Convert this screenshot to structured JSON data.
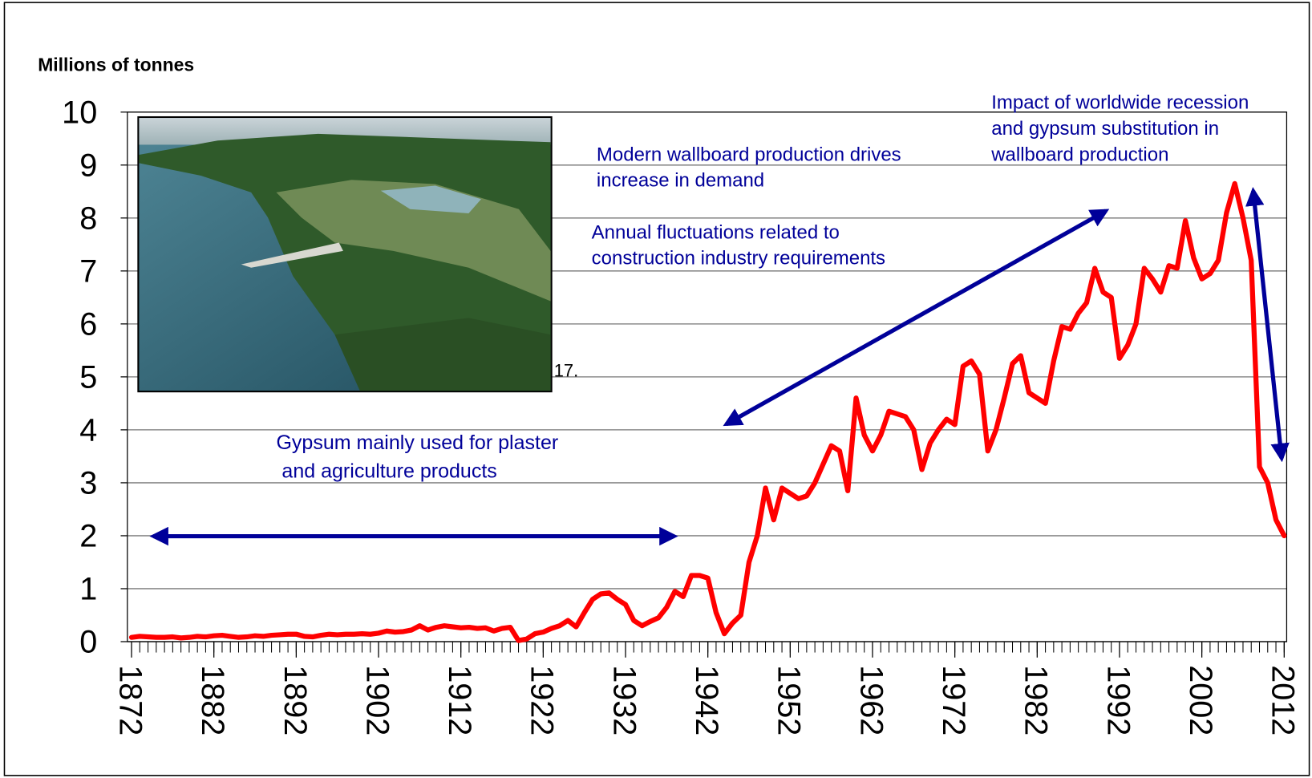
{
  "chart_data": {
    "type": "line",
    "y_axis_label": "Millions of tonnes",
    "x": [
      1872,
      1873,
      1874,
      1875,
      1876,
      1877,
      1878,
      1879,
      1880,
      1881,
      1882,
      1883,
      1884,
      1885,
      1886,
      1887,
      1888,
      1889,
      1890,
      1891,
      1892,
      1893,
      1894,
      1895,
      1896,
      1897,
      1898,
      1899,
      1900,
      1901,
      1902,
      1903,
      1904,
      1905,
      1906,
      1907,
      1908,
      1909,
      1910,
      1911,
      1912,
      1913,
      1914,
      1915,
      1916,
      1917,
      1918,
      1919,
      1920,
      1921,
      1922,
      1923,
      1924,
      1925,
      1926,
      1927,
      1928,
      1929,
      1930,
      1931,
      1932,
      1933,
      1934,
      1935,
      1936,
      1937,
      1938,
      1939,
      1940,
      1941,
      1942,
      1943,
      1944,
      1945,
      1946,
      1947,
      1948,
      1949,
      1950,
      1951,
      1952,
      1953,
      1954,
      1955,
      1956,
      1957,
      1958,
      1959,
      1960,
      1961,
      1962,
      1963,
      1964,
      1965,
      1966,
      1967,
      1968,
      1969,
      1970,
      1971,
      1972,
      1973,
      1974,
      1975,
      1976,
      1977,
      1978,
      1979,
      1980,
      1981,
      1982,
      1983,
      1984,
      1985,
      1986,
      1987,
      1988,
      1989,
      1990,
      1991,
      1992,
      1993,
      1994,
      1995,
      1996,
      1997,
      1998,
      1999,
      2000,
      2001,
      2002,
      2003,
      2004,
      2005,
      2006,
      2007,
      2008,
      2009,
      2010,
      2011,
      2012
    ],
    "values": [
      0.08,
      0.1,
      0.09,
      0.08,
      0.08,
      0.09,
      0.07,
      0.08,
      0.1,
      0.09,
      0.11,
      0.12,
      0.1,
      0.08,
      0.09,
      0.11,
      0.1,
      0.12,
      0.13,
      0.14,
      0.14,
      0.1,
      0.09,
      0.12,
      0.14,
      0.13,
      0.14,
      0.14,
      0.15,
      0.14,
      0.16,
      0.2,
      0.18,
      0.19,
      0.22,
      0.3,
      0.22,
      0.27,
      0.3,
      0.28,
      0.26,
      0.27,
      0.25,
      0.26,
      0.2,
      0.25,
      0.27,
      0.02,
      0.05,
      0.15,
      0.18,
      0.25,
      0.3,
      0.4,
      0.28,
      0.55,
      0.8,
      0.9,
      0.92,
      0.8,
      0.7,
      0.4,
      0.3,
      0.38,
      0.45,
      0.65,
      0.95,
      0.85,
      1.25,
      1.25,
      1.2,
      0.55,
      0.15,
      0.35,
      0.5,
      1.5,
      2.0,
      2.9,
      2.3,
      2.9,
      2.8,
      2.7,
      2.75,
      3.0,
      3.35,
      3.7,
      3.6,
      2.85,
      4.6,
      3.9,
      3.6,
      3.9,
      4.35,
      4.3,
      4.25,
      4.0,
      3.25,
      3.75,
      4.0,
      4.2,
      4.1,
      5.2,
      5.3,
      5.05,
      3.6,
      4.0,
      4.6,
      5.25,
      5.4,
      4.7,
      4.6,
      4.5,
      5.3,
      5.95,
      5.9,
      6.2,
      6.4,
      7.05,
      6.6,
      6.5,
      5.35,
      5.6,
      6.0,
      7.05,
      6.85,
      6.6,
      7.1,
      7.05,
      7.95,
      7.25,
      6.85,
      6.95,
      7.2,
      8.1,
      8.65,
      8.0,
      7.2,
      3.3,
      3.0,
      2.3,
      2.0
    ],
    "color": "#ff0000",
    "xlim": [
      1872,
      2012
    ],
    "xticks": [
      1872,
      1882,
      1892,
      1902,
      1912,
      1922,
      1932,
      1942,
      1952,
      1962,
      1972,
      1982,
      1992,
      2002,
      2012
    ],
    "ylim": [
      0,
      10
    ],
    "yticks": [
      0,
      1,
      2,
      3,
      4,
      5,
      6,
      7,
      8,
      9,
      10
    ],
    "grid": true,
    "annotations": [
      {
        "lines": [
          "Gypsum mainly used for plaster",
          " and agriculture products"
        ]
      },
      {
        "lines": [
          "Modern wallboard production drives",
          "increase in demand"
        ]
      },
      {
        "lines": [
          "Annual fluctuations related to",
          "construction industry requirements"
        ]
      },
      {
        "lines": [
          "Impact of worldwide recession",
          "and gypsum substitution in",
          "wallboard production"
        ]
      },
      {
        "lines": [
          "17."
        ]
      }
    ]
  }
}
